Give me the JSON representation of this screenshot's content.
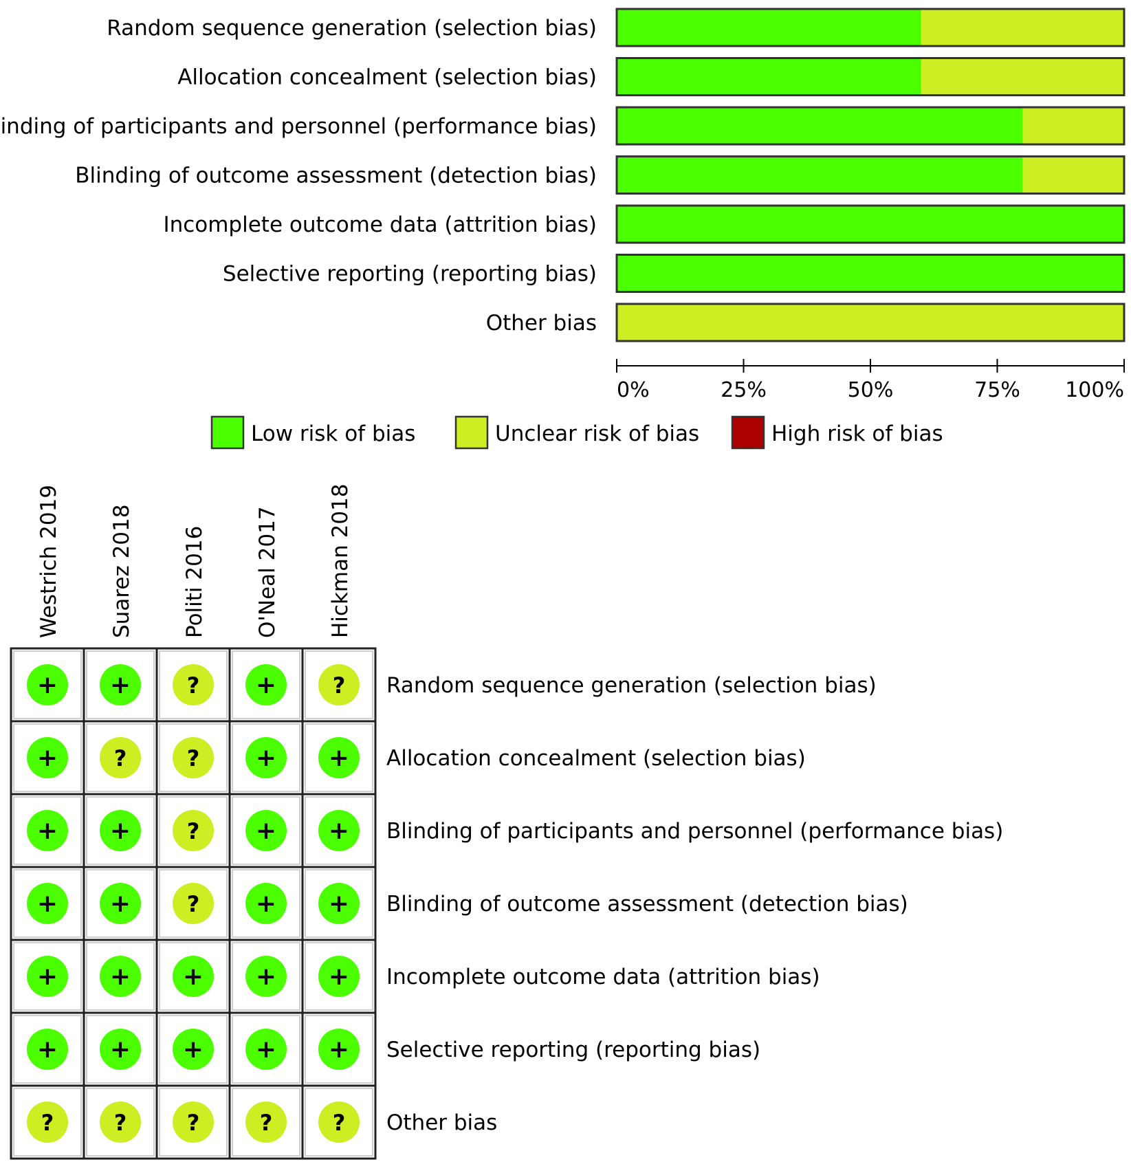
{
  "chart_data": [
    {
      "type": "bar",
      "orientation": "horizontal",
      "stacked": true,
      "normalized": true,
      "categories": [
        "Random sequence generation (selection bias)",
        "Allocation concealment (selection bias)",
        "Blinding of participants and personnel (performance bias)",
        "Blinding of outcome assessment (detection bias)",
        "Incomplete outcome data (attrition bias)",
        "Selective reporting (reporting bias)",
        "Other bias"
      ],
      "series": [
        {
          "name": "Low risk of bias",
          "color": "#4cff00",
          "values": [
            60,
            60,
            80,
            80,
            100,
            100,
            0
          ]
        },
        {
          "name": "Unclear risk of bias",
          "color": "#ccee22",
          "values": [
            40,
            40,
            20,
            20,
            0,
            0,
            100
          ]
        },
        {
          "name": "High risk of bias",
          "color": "#aa0000",
          "values": [
            0,
            0,
            0,
            0,
            0,
            0,
            0
          ]
        }
      ],
      "xlim": [
        0,
        100
      ],
      "xticks": [
        "0%",
        "25%",
        "50%",
        "75%",
        "100%"
      ],
      "legend": "bottom"
    },
    {
      "type": "table",
      "columns": [
        "Westrich 2019",
        "Suarez 2018",
        "Politi 2016",
        "O'Neal 2017",
        "Hickman 2018"
      ],
      "rows": [
        "Random sequence generation (selection bias)",
        "Allocation concealment (selection bias)",
        "Blinding of participants and personnel (performance bias)",
        "Blinding of outcome assessment (detection bias)",
        "Incomplete outcome data (attrition bias)",
        "Selective reporting (reporting bias)",
        "Other bias"
      ],
      "cells": [
        [
          "+",
          "+",
          "?",
          "+",
          "?"
        ],
        [
          "+",
          "?",
          "?",
          "+",
          "+"
        ],
        [
          "+",
          "+",
          "?",
          "+",
          "+"
        ],
        [
          "+",
          "+",
          "?",
          "+",
          "+"
        ],
        [
          "+",
          "+",
          "+",
          "+",
          "+"
        ],
        [
          "+",
          "+",
          "+",
          "+",
          "+"
        ],
        [
          "?",
          "?",
          "?",
          "?",
          "?"
        ]
      ],
      "symbols": {
        "+": {
          "color": "#4cff00",
          "glyph": "+"
        },
        "?": {
          "color": "#ccee22",
          "glyph": "?"
        }
      }
    }
  ]
}
